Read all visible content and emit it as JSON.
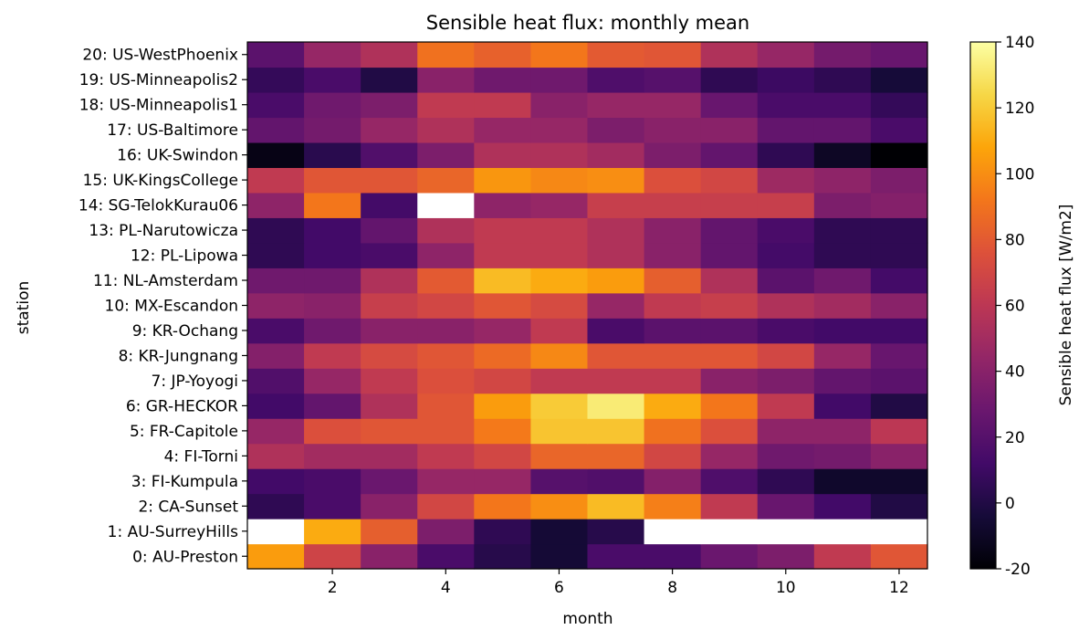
{
  "chart_data": {
    "type": "heatmap",
    "title": "Sensible heat flux: monthly mean",
    "xlabel": "month",
    "ylabel": "station",
    "x": [
      1,
      2,
      3,
      4,
      5,
      6,
      7,
      8,
      9,
      10,
      11,
      12
    ],
    "x_ticks": [
      2,
      4,
      6,
      8,
      10,
      12
    ],
    "xlim": [
      0.5,
      12.5
    ],
    "stations": [
      "0: AU-Preston",
      "1: AU-SurreyHills",
      "2: CA-Sunset",
      "3: FI-Kumpula",
      "4: FI-Torni",
      "5: FR-Capitole",
      "6: GR-HECKOR",
      "7: JP-Yoyogi",
      "8: KR-Jungnang",
      "9: KR-Ochang",
      "10: MX-Escandon",
      "11: NL-Amsterdam",
      "12: PL-Lipowa",
      "13: PL-Narutowicza",
      "14: SG-TelokKurau06",
      "15: UK-KingsCollege",
      "16: UK-Swindon",
      "17: US-Baltimore",
      "18: US-Minneapolis1",
      "19: US-Minneapolis2",
      "20: US-WestPhoenix"
    ],
    "values": [
      [
        105,
        68,
        40,
        15,
        2,
        -5,
        15,
        15,
        28,
        35,
        62,
        78
      ],
      [
        null,
        110,
        82,
        35,
        5,
        -5,
        2,
        null,
        null,
        null,
        null,
        null
      ],
      [
        5,
        15,
        40,
        70,
        92,
        100,
        115,
        95,
        62,
        27,
        12,
        0
      ],
      [
        12,
        15,
        28,
        45,
        45,
        20,
        18,
        38,
        17,
        5,
        -8,
        -8
      ],
      [
        55,
        50,
        50,
        62,
        70,
        85,
        85,
        70,
        45,
        30,
        32,
        40
      ],
      [
        45,
        75,
        78,
        78,
        93,
        118,
        118,
        90,
        75,
        42,
        42,
        60
      ],
      [
        12,
        25,
        55,
        78,
        105,
        120,
        132,
        110,
        92,
        62,
        12,
        0
      ],
      [
        18,
        45,
        62,
        75,
        70,
        62,
        62,
        62,
        40,
        35,
        25,
        22
      ],
      [
        38,
        62,
        72,
        78,
        87,
        98,
        78,
        78,
        78,
        70,
        45,
        27
      ],
      [
        15,
        30,
        40,
        40,
        45,
        62,
        15,
        22,
        22,
        15,
        12,
        12
      ],
      [
        42,
        40,
        65,
        70,
        78,
        72,
        45,
        62,
        65,
        55,
        50,
        40
      ],
      [
        30,
        30,
        55,
        80,
        115,
        110,
        105,
        82,
        55,
        22,
        30,
        13
      ],
      [
        5,
        12,
        15,
        42,
        62,
        62,
        55,
        40,
        25,
        13,
        5,
        5
      ],
      [
        5,
        12,
        25,
        55,
        62,
        62,
        55,
        40,
        25,
        15,
        5,
        5
      ],
      [
        42,
        92,
        13,
        null,
        42,
        45,
        65,
        65,
        65,
        65,
        35,
        38
      ],
      [
        62,
        78,
        78,
        85,
        103,
        98,
        100,
        75,
        70,
        48,
        42,
        35
      ],
      [
        -15,
        3,
        18,
        35,
        55,
        55,
        50,
        35,
        25,
        5,
        -10,
        -20
      ],
      [
        25,
        32,
        45,
        55,
        45,
        45,
        35,
        40,
        40,
        25,
        25,
        15
      ],
      [
        15,
        30,
        35,
        62,
        62,
        40,
        45,
        45,
        27,
        15,
        15,
        7
      ],
      [
        7,
        15,
        0,
        40,
        30,
        30,
        17,
        20,
        5,
        10,
        5,
        -4
      ],
      [
        22,
        45,
        55,
        90,
        83,
        92,
        80,
        78,
        55,
        45,
        32,
        27
      ]
    ],
    "colormap": "inferno",
    "colorbar": {
      "label": "Sensible heat flux [W/m2]",
      "range": [
        -20,
        140
      ],
      "ticks": [
        -20,
        0,
        20,
        40,
        60,
        80,
        100,
        120,
        140
      ]
    },
    "missing_color": "#ffffff"
  }
}
